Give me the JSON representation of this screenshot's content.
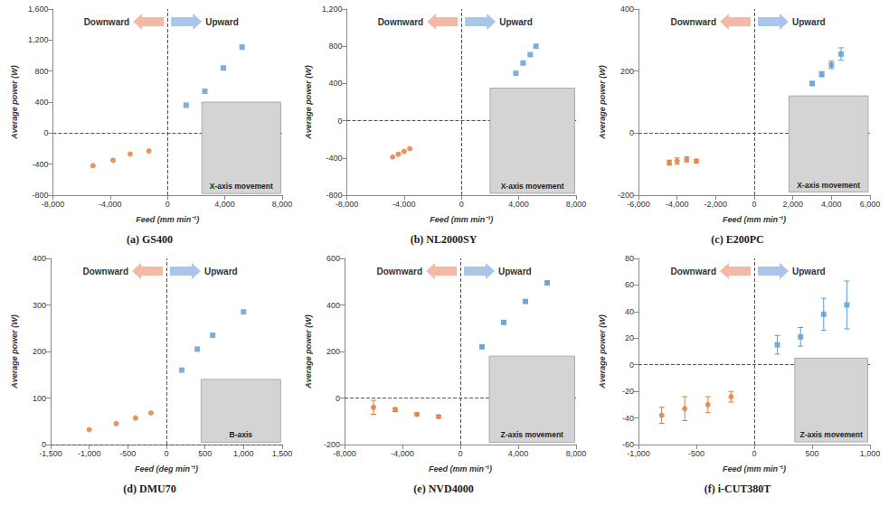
{
  "chart_data": [
    {
      "type": "scatter",
      "title": "(a) GS400",
      "x_label": "Feed (mm min⁻¹)",
      "y_label": "Average power (W)",
      "annotations": [
        "X-axis movement"
      ],
      "grid": false,
      "xlim": [
        -8000,
        8000
      ],
      "xticks": [
        {
          "value": -8000,
          "label": "-8,000"
        },
        {
          "value": -4000,
          "label": "-4,000"
        },
        0,
        {
          "value": 4000,
          "label": "4,000"
        },
        {
          "value": 8000,
          "label": "8,000"
        }
      ],
      "ylim": [
        -800,
        1600
      ],
      "yticks": [
        -800,
        -400,
        0,
        400,
        800,
        {
          "value": 1200,
          "label": "1,200"
        },
        {
          "value": 1600,
          "label": "1,600"
        }
      ],
      "series": [
        {
          "name": "Downward",
          "color": "#e07b39",
          "marker": "circle",
          "x": [
            -5200,
            -3800,
            -2600,
            -1300
          ],
          "values": [
            -420,
            -350,
            -270,
            -230
          ]
        },
        {
          "name": "Upward",
          "color": "#5b9bd5",
          "marker": "square",
          "x": [
            1300,
            2600,
            3900,
            5200
          ],
          "values": [
            360,
            540,
            840,
            1110
          ]
        }
      ]
    },
    {
      "type": "scatter",
      "title": "(b) NL2000SY",
      "x_label": "Feed (mm min⁻¹)",
      "y_label": "Average power (W)",
      "annotations": [
        "X-axis movement"
      ],
      "grid": false,
      "xlim": [
        -8000,
        8000
      ],
      "xticks": [
        {
          "value": -8000,
          "label": "-8,000"
        },
        {
          "value": -4000,
          "label": "-4,000"
        },
        0,
        {
          "value": 4000,
          "label": "4,000"
        },
        {
          "value": 8000,
          "label": "8,000"
        }
      ],
      "ylim": [
        -800,
        1200
      ],
      "yticks": [
        -800,
        -400,
        0,
        400,
        800,
        {
          "value": 1200,
          "label": "1,200"
        }
      ],
      "series": [
        {
          "name": "Downward",
          "color": "#e07b39",
          "marker": "circle",
          "x": [
            -4800,
            -4400,
            -4000,
            -3600
          ],
          "values": [
            -390,
            -360,
            -330,
            -300
          ]
        },
        {
          "name": "Upward",
          "color": "#5b9bd5",
          "marker": "square",
          "x": [
            3800,
            4300,
            4800,
            5200
          ],
          "values": [
            510,
            620,
            710,
            800
          ]
        }
      ]
    },
    {
      "type": "scatter",
      "title": "(c) E200PC",
      "x_label": "Feed (mm min⁻¹)",
      "y_label": "Average power (W)",
      "annotations": [
        "X-axis movement"
      ],
      "grid": false,
      "xlim": [
        -6000,
        6000
      ],
      "xticks": [
        {
          "value": -6000,
          "label": "-6,000"
        },
        {
          "value": -4000,
          "label": "-4,000"
        },
        {
          "value": -2000,
          "label": "-2,000"
        },
        0,
        {
          "value": 2000,
          "label": "2,000"
        },
        {
          "value": 4000,
          "label": "4,000"
        },
        {
          "value": 6000,
          "label": "6,000"
        }
      ],
      "ylim": [
        -200,
        400
      ],
      "yticks": [
        -200,
        0,
        200,
        400
      ],
      "series": [
        {
          "name": "Downward",
          "color": "#e07b39",
          "marker": "circle",
          "x": [
            -4400,
            -4000,
            -3500,
            -3000
          ],
          "values": [
            -95,
            -90,
            -85,
            -90
          ],
          "errors": [
            8,
            10,
            8,
            6
          ]
        },
        {
          "name": "Upward",
          "color": "#5b9bd5",
          "marker": "square",
          "x": [
            3000,
            3500,
            4000,
            4500
          ],
          "values": [
            160,
            190,
            220,
            255
          ],
          "errors": [
            6,
            8,
            12,
            20
          ]
        }
      ]
    },
    {
      "type": "scatter",
      "title": "(d) DMU70",
      "x_label": "Feed (deg min⁻¹)",
      "y_label": "Average power (W)",
      "annotations": [
        "B-axis"
      ],
      "grid": false,
      "xlim": [
        -1500,
        1500
      ],
      "xticks": [
        {
          "value": -1500,
          "label": "-1,500"
        },
        {
          "value": -1000,
          "label": "-1,000"
        },
        -500,
        0,
        500,
        {
          "value": 1000,
          "label": "1,000"
        },
        {
          "value": 1500,
          "label": "1,500"
        }
      ],
      "ylim": [
        0,
        400
      ],
      "yticks": [
        0,
        100,
        200,
        300,
        400
      ],
      "series": [
        {
          "name": "Downward",
          "color": "#e07b39",
          "marker": "circle",
          "x": [
            -1000,
            -650,
            -400,
            -200
          ],
          "values": [
            32,
            45,
            57,
            68
          ]
        },
        {
          "name": "Upward",
          "color": "#5b9bd5",
          "marker": "square",
          "x": [
            200,
            400,
            600,
            1000
          ],
          "values": [
            160,
            205,
            235,
            285
          ]
        }
      ]
    },
    {
      "type": "scatter",
      "title": "(e) NVD4000",
      "x_label": "Feed (mm min⁻¹)",
      "y_label": "Average power (W)",
      "annotations": [
        "Z-axis movement"
      ],
      "grid": false,
      "xlim": [
        -8000,
        8000
      ],
      "xticks": [
        {
          "value": -8000,
          "label": "-8,000"
        },
        {
          "value": -4000,
          "label": "-4,000"
        },
        0,
        {
          "value": 4000,
          "label": "4,000"
        },
        {
          "value": 8000,
          "label": "8,000"
        }
      ],
      "ylim": [
        -200,
        600
      ],
      "yticks": [
        -200,
        0,
        200,
        400,
        600
      ],
      "series": [
        {
          "name": "Downward",
          "color": "#e07b39",
          "marker": "circle",
          "x": [
            -6000,
            -4500,
            -3000,
            -1500
          ],
          "values": [
            -40,
            -50,
            -70,
            -80
          ],
          "errors": [
            30,
            8,
            6,
            6
          ]
        },
        {
          "name": "Upward",
          "color": "#5b9bd5",
          "marker": "square",
          "x": [
            1500,
            3000,
            4500,
            6000
          ],
          "values": [
            220,
            325,
            415,
            495
          ],
          "errors": [
            6,
            6,
            6,
            6
          ]
        }
      ]
    },
    {
      "type": "scatter",
      "title": "(f) i-CUT380T",
      "x_label": "Feed (mm min⁻¹)",
      "y_label": "Average power (W)",
      "annotations": [
        "Z-axis movement"
      ],
      "grid": false,
      "xlim": [
        -1000,
        1000
      ],
      "xticks": [
        {
          "value": -1000,
          "label": "-1,000"
        },
        -500,
        0,
        500,
        {
          "value": 1000,
          "label": "1,000"
        }
      ],
      "ylim": [
        -60,
        80
      ],
      "yticks": [
        -60,
        -40,
        -20,
        0,
        20,
        40,
        60,
        80
      ],
      "series": [
        {
          "name": "Downward",
          "color": "#e07b39",
          "marker": "circle",
          "x": [
            -800,
            -600,
            -400,
            -200
          ],
          "values": [
            -38,
            -33,
            -30,
            -24
          ],
          "errors": [
            6,
            9,
            6,
            4
          ]
        },
        {
          "name": "Upward",
          "color": "#5b9bd5",
          "marker": "square",
          "x": [
            200,
            400,
            600,
            800
          ],
          "values": [
            15,
            21,
            38,
            45
          ],
          "errors": [
            7,
            7,
            12,
            18
          ]
        }
      ]
    }
  ]
}
